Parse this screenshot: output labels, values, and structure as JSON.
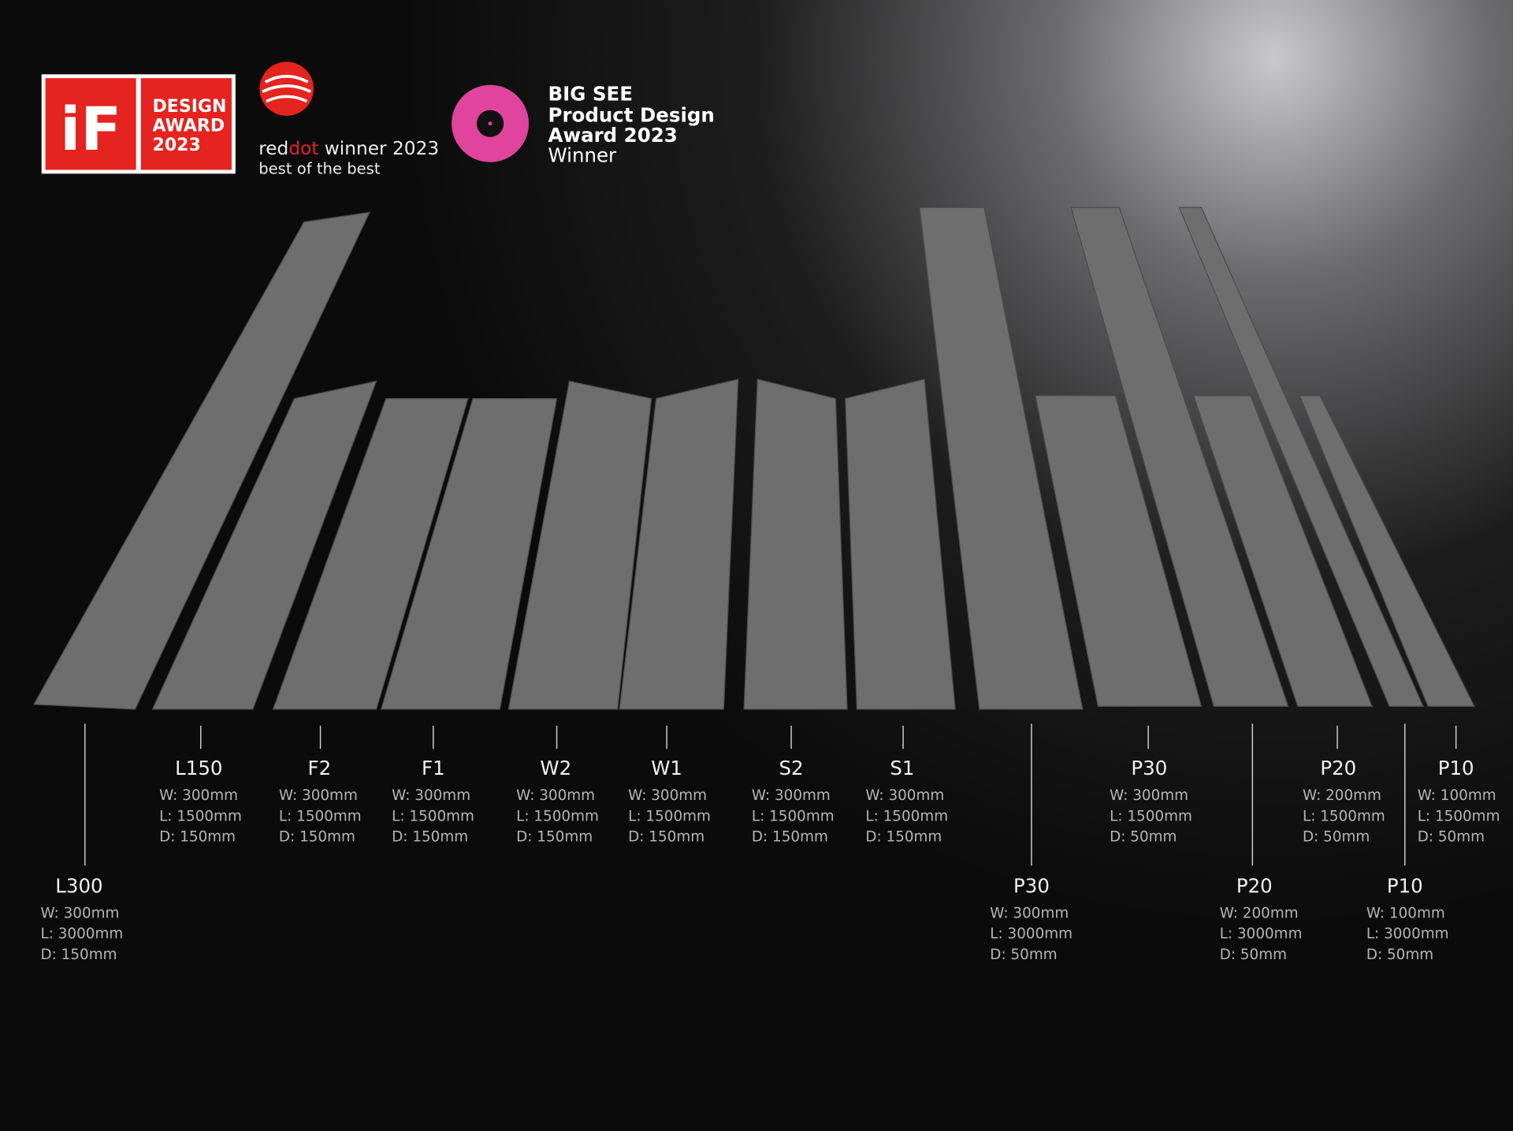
{
  "awards": {
    "if_award": {
      "logo": "iF",
      "lines": [
        "DESIGN",
        "AWARD",
        "2023"
      ]
    },
    "reddot": {
      "brand_red": "red",
      "brand_dot": "dot",
      "suffix": "winner 2023",
      "tagline": "best of the best"
    },
    "big_see": {
      "lines": [
        "BIG SEE",
        "Product Design",
        "Award 2023",
        "Winner"
      ]
    }
  },
  "products": [
    {
      "name": "L300",
      "width": "W: 300mm",
      "length": "L: 3000mm",
      "depth": "D: 150mm"
    },
    {
      "name": "L150",
      "width": "W: 300mm",
      "length": "L: 1500mm",
      "depth": "D: 150mm"
    },
    {
      "name": "F2",
      "width": "W: 300mm",
      "length": "L: 1500mm",
      "depth": "D: 150mm"
    },
    {
      "name": "F1",
      "width": "W: 300mm",
      "length": "L: 1500mm",
      "depth": "D: 150mm"
    },
    {
      "name": "W2",
      "width": "W: 300mm",
      "length": "L: 1500mm",
      "depth": "D: 150mm"
    },
    {
      "name": "W1",
      "width": "W: 300mm",
      "length": "L: 1500mm",
      "depth": "D: 150mm"
    },
    {
      "name": "S2",
      "width": "W: 300mm",
      "length": "L: 1500mm",
      "depth": "D: 150mm"
    },
    {
      "name": "S1",
      "width": "W: 300mm",
      "length": "L: 1500mm",
      "depth": "D: 150mm"
    },
    {
      "name": "P30",
      "width": "W: 300mm",
      "length": "L: 3000mm",
      "depth": "D: 50mm"
    },
    {
      "name": "P30",
      "width": "W: 300mm",
      "length": "L: 1500mm",
      "depth": "D: 50mm"
    },
    {
      "name": "P20",
      "width": "W: 200mm",
      "length": "L: 3000mm",
      "depth": "D: 50mm"
    },
    {
      "name": "P20",
      "width": "W: 200mm",
      "length": "L: 1500mm",
      "depth": "D: 50mm"
    },
    {
      "name": "P10",
      "width": "W: 100mm",
      "length": "L: 3000mm",
      "depth": "D: 50mm"
    },
    {
      "name": "P10",
      "width": "W: 100mm",
      "length": "L: 1500mm",
      "depth": "D: 50mm"
    }
  ]
}
